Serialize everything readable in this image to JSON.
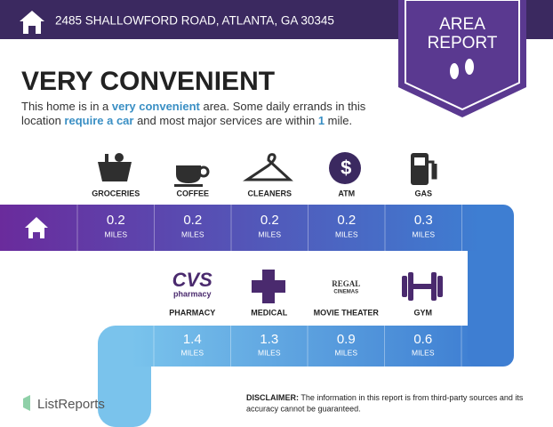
{
  "header": {
    "address": "2485 SHALLOWFORD ROAD, ATLANTA, GA 30345"
  },
  "badge": {
    "line1": "AREA",
    "line2": "REPORT"
  },
  "title": "VERY CONVENIENT",
  "description": {
    "line1": [
      "This home is in a ",
      "very convenient",
      " area. Some daily errands in this"
    ],
    "line2": [
      "location ",
      "require a car",
      " and most major services are within ",
      "1",
      " mile."
    ]
  },
  "row1": [
    {
      "label": "GROCERIES",
      "distance": "0.2",
      "unit": "MILES"
    },
    {
      "label": "COFFEE",
      "distance": "0.2",
      "unit": "MILES"
    },
    {
      "label": "CLEANERS",
      "distance": "0.2",
      "unit": "MILES"
    },
    {
      "label": "ATM",
      "distance": "0.2",
      "unit": "MILES",
      "icon_text": "$"
    },
    {
      "label": "GAS",
      "distance": "0.3",
      "unit": "MILES"
    }
  ],
  "row2": [
    {
      "label": "PHARMACY",
      "distance": "1.4",
      "unit": "MILES",
      "logo": [
        "CVS",
        "pharmacy"
      ]
    },
    {
      "label": "MEDICAL",
      "distance": "1.3",
      "unit": "MILES"
    },
    {
      "label": "MOVIE THEATER",
      "distance": "0.9",
      "unit": "MILES",
      "logo": [
        "REGAL",
        "CINEMAS"
      ]
    },
    {
      "label": "GYM",
      "distance": "0.6",
      "unit": "MILES"
    }
  ],
  "footer": {
    "brand": "ListReports",
    "disclaimer_label": "DISCLAIMER:",
    "disclaimer_line1": " The information in this report is from third-party sources and its",
    "disclaimer_line2": "accuracy cannot be guaranteed."
  }
}
